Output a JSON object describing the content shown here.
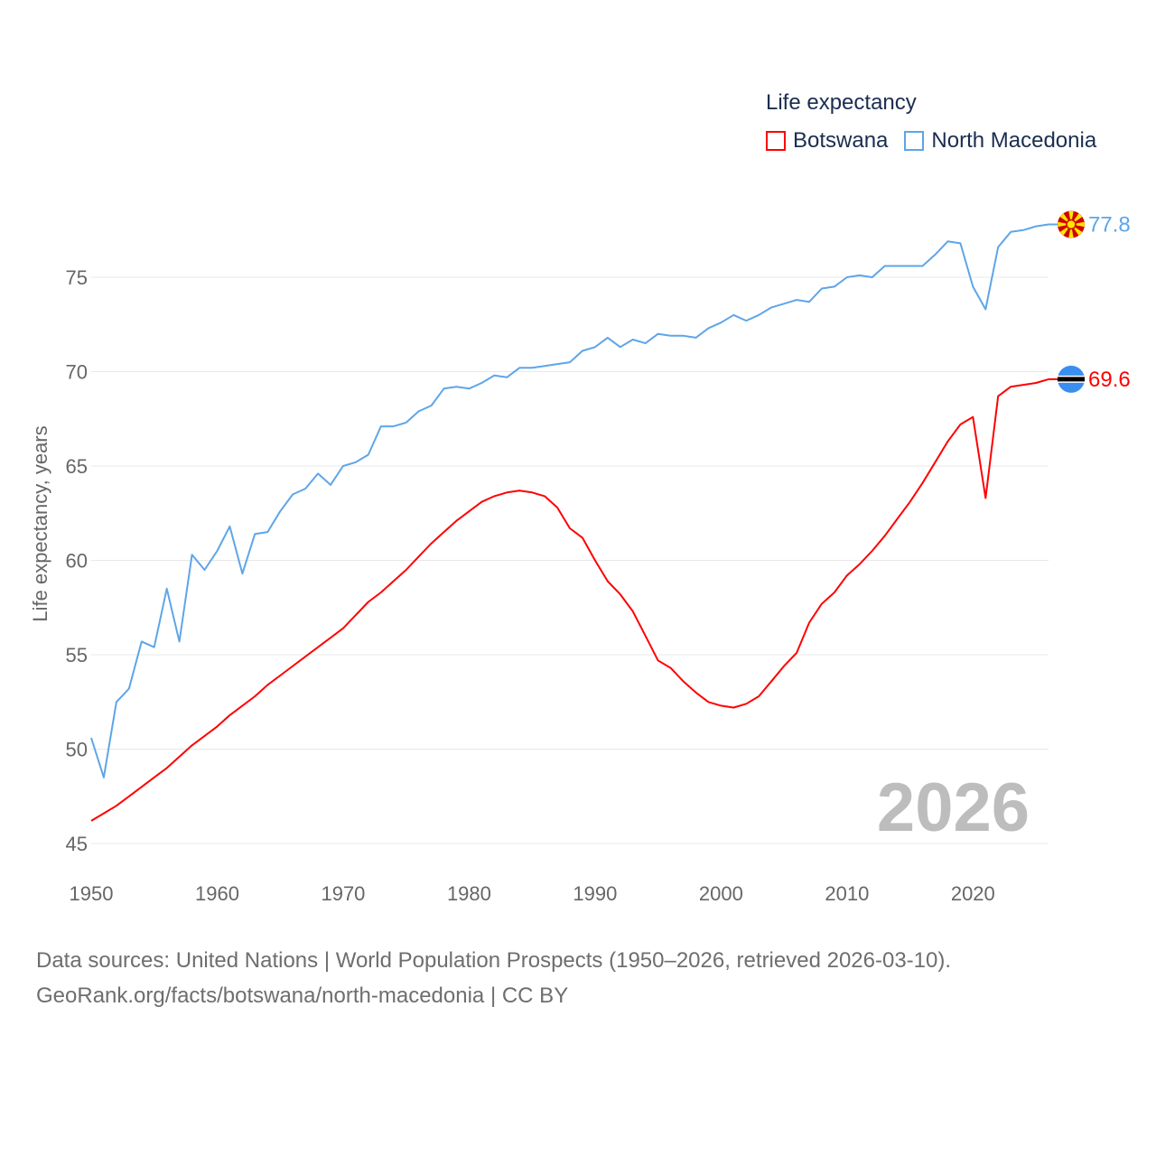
{
  "colors": {
    "botswana": "#ff0000",
    "north_macedonia": "#5ea5e8",
    "grid": "#e8e8e8"
  },
  "legend": {
    "title": "Life expectancy",
    "items": [
      {
        "label": "Botswana",
        "color": "#ff0000"
      },
      {
        "label": "North Macedonia",
        "color": "#5ea5e8"
      }
    ]
  },
  "year_watermark": "2026",
  "footer": {
    "line1": "Data sources: United Nations | World Population Prospects (1950–2026, retrieved 2026-03-10).",
    "line2": "GeoRank.org/facts/botswana/north-macedonia | CC BY"
  },
  "chart_data": {
    "type": "line",
    "title": "Life expectancy",
    "xlabel": "",
    "ylabel": "Life expectancy, years",
    "xlim": [
      1950,
      2026
    ],
    "ylim": [
      45,
      78
    ],
    "x_ticks": [
      "1950",
      "1960",
      "1970",
      "1980",
      "1990",
      "2000",
      "2010",
      "2020"
    ],
    "y_ticks": [
      "45",
      "50",
      "55",
      "60",
      "65",
      "70",
      "75"
    ],
    "grid": true,
    "legend_position": "top-right",
    "x_start": 1950,
    "series": [
      {
        "name": "Botswana",
        "end_label": "69.6",
        "flag": "botswana-flag",
        "values": [
          46.2,
          46.6,
          47.0,
          47.5,
          48.0,
          48.5,
          49.0,
          49.6,
          50.2,
          50.7,
          51.2,
          51.8,
          52.3,
          52.8,
          53.4,
          53.9,
          54.4,
          54.9,
          55.4,
          55.9,
          56.4,
          57.1,
          57.8,
          58.3,
          58.9,
          59.5,
          60.2,
          60.9,
          61.5,
          62.1,
          62.6,
          63.1,
          63.4,
          63.6,
          63.7,
          63.6,
          63.4,
          62.8,
          61.7,
          61.2,
          60.0,
          58.9,
          58.2,
          57.3,
          56.0,
          54.7,
          54.3,
          53.6,
          53.0,
          52.5,
          52.3,
          52.2,
          52.4,
          52.8,
          53.6,
          54.4,
          55.1,
          56.7,
          57.7,
          58.3,
          59.2,
          59.8,
          60.5,
          61.3,
          62.2,
          63.1,
          64.1,
          65.2,
          66.3,
          67.2,
          67.6,
          63.3,
          68.7,
          69.2,
          69.3,
          69.4,
          69.6
        ]
      },
      {
        "name": "North Macedonia",
        "end_label": "77.8",
        "flag": "north-macedonia-flag",
        "values": [
          50.6,
          48.5,
          52.5,
          53.2,
          55.7,
          55.4,
          58.5,
          55.7,
          60.3,
          59.5,
          60.5,
          61.8,
          59.3,
          61.4,
          61.5,
          62.6,
          63.5,
          63.8,
          64.6,
          64.0,
          65.0,
          65.2,
          65.6,
          67.1,
          67.1,
          67.3,
          67.9,
          68.2,
          69.1,
          69.2,
          69.1,
          69.4,
          69.8,
          69.7,
          70.2,
          70.2,
          70.3,
          70.4,
          70.5,
          71.1,
          71.3,
          71.8,
          71.3,
          71.7,
          71.5,
          72.0,
          71.9,
          71.9,
          71.8,
          72.3,
          72.6,
          73.0,
          72.7,
          73.0,
          73.4,
          73.6,
          73.8,
          73.7,
          74.4,
          74.5,
          75.0,
          75.1,
          75.0,
          75.6,
          75.6,
          75.6,
          75.6,
          76.2,
          76.9,
          76.8,
          74.5,
          73.3,
          76.6,
          77.4,
          77.5,
          77.7,
          77.8
        ]
      }
    ]
  }
}
